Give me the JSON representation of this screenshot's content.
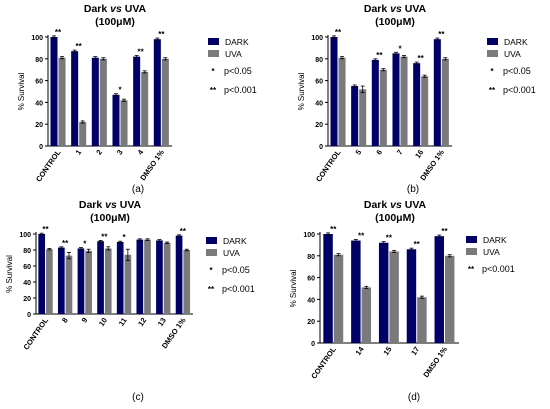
{
  "colors": {
    "dark": "#000066",
    "uva": "#7a7a7a",
    "error_bar": "#000000"
  },
  "chart_data": [
    {
      "id": "a",
      "type": "bar",
      "title": [
        "Dark vs UVA",
        "(100μM)"
      ],
      "ylabel": "% Survival",
      "xlabel": "",
      "ylim": [
        0,
        100
      ],
      "yticks": [
        0,
        20,
        40,
        60,
        80,
        100
      ],
      "categories": [
        "CONTROL",
        "1",
        "2",
        "3",
        "4",
        "DMSO 1%"
      ],
      "series": [
        {
          "name": "DARK",
          "values": [
            100,
            87,
            81,
            47,
            82,
            98
          ],
          "errors": [
            1,
            1,
            1,
            1,
            1,
            1
          ]
        },
        {
          "name": "UVA",
          "values": [
            81,
            22,
            80,
            42,
            68,
            80
          ],
          "errors": [
            1,
            1,
            1,
            1,
            1,
            1
          ]
        }
      ],
      "significance": [
        "**",
        "**",
        "",
        "*",
        "**",
        "**"
      ],
      "legend_notes": [
        [
          "*",
          "p<0.05"
        ],
        [
          "**",
          "p<0.001"
        ]
      ],
      "panel_label": "(a)"
    },
    {
      "id": "b",
      "type": "bar",
      "title": [
        "Dark vs UVA",
        "(100μM)"
      ],
      "ylabel": "% Survival",
      "xlabel": "",
      "ylim": [
        0,
        100
      ],
      "yticks": [
        0,
        20,
        40,
        60,
        80,
        100
      ],
      "categories": [
        "CONTROL",
        "5",
        "6",
        "7",
        "16",
        "DMSO 1%"
      ],
      "series": [
        {
          "name": "DARK",
          "values": [
            100,
            55,
            79,
            85,
            76,
            98
          ],
          "errors": [
            1,
            1,
            1,
            1,
            1,
            1
          ]
        },
        {
          "name": "UVA",
          "values": [
            81,
            52,
            70,
            82,
            64,
            80
          ],
          "errors": [
            1,
            3,
            1,
            1,
            1,
            1
          ]
        }
      ],
      "significance": [
        "**",
        "",
        "**",
        "*",
        "**",
        "**"
      ],
      "legend_notes": [
        [
          "*",
          "p<0.05"
        ],
        [
          "**",
          "p<0.001"
        ]
      ],
      "panel_label": "(b)"
    },
    {
      "id": "c",
      "type": "bar",
      "title": [
        "Dark vs UVA",
        "(100μM)"
      ],
      "ylabel": "% Survival",
      "xlabel": "",
      "ylim": [
        0,
        100
      ],
      "yticks": [
        0,
        20,
        40,
        60,
        80,
        100
      ],
      "categories": [
        "CONTROL",
        "8",
        "9",
        "10",
        "11",
        "12",
        "13",
        "DMSO 1%"
      ],
      "series": [
        {
          "name": "DARK",
          "values": [
            100,
            83,
            82,
            91,
            90,
            93,
            92,
            98
          ],
          "errors": [
            1,
            1,
            1,
            1,
            1,
            1,
            1,
            1
          ]
        },
        {
          "name": "UVA",
          "values": [
            81,
            73,
            79,
            82,
            74,
            93,
            89,
            80
          ],
          "errors": [
            1,
            4,
            2,
            2,
            7,
            1,
            1,
            1
          ]
        }
      ],
      "significance": [
        "**",
        "**",
        "*",
        "**",
        "*",
        "",
        "",
        "**"
      ],
      "legend_notes": [
        [
          "*",
          "p<0.05"
        ],
        [
          "**",
          "p<0.001"
        ]
      ],
      "panel_label": "(c)"
    },
    {
      "id": "d",
      "type": "bar",
      "title": [
        "Dark vs UVA",
        "(100μM)"
      ],
      "ylabel": "% Survival",
      "xlabel": "",
      "ylim": [
        0,
        100
      ],
      "yticks": [
        0,
        20,
        40,
        60,
        80,
        100
      ],
      "categories": [
        "CONTROL",
        "14",
        "15",
        "17",
        "DMSO 1%"
      ],
      "series": [
        {
          "name": "DARK",
          "values": [
            100,
            94,
            92,
            86,
            98
          ],
          "errors": [
            1,
            1,
            1,
            1,
            1
          ]
        },
        {
          "name": "UVA",
          "values": [
            81,
            51,
            84,
            42,
            80
          ],
          "errors": [
            1,
            1,
            1,
            1,
            1
          ]
        }
      ],
      "significance": [
        "**",
        "**",
        "**",
        "**",
        "**"
      ],
      "legend_notes": [
        [
          "**",
          "p<0.001"
        ]
      ],
      "panel_label": "(d)"
    }
  ]
}
